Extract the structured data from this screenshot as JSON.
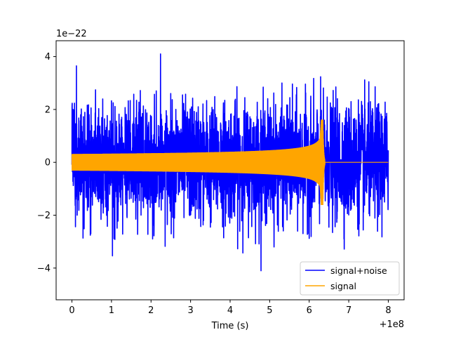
{
  "chart_data": {
    "type": "line",
    "title": "",
    "xlabel": "Time (s)",
    "ylabel": "",
    "x_offset_label": "+1e8",
    "y_scale_label": "1e−22",
    "xlim": [
      -0.4,
      8.4
    ],
    "ylim": [
      -5.2,
      4.6
    ],
    "x_ticks": [
      0,
      1,
      2,
      3,
      4,
      5,
      6,
      7,
      8
    ],
    "x_tick_labels": [
      "0",
      "1",
      "2",
      "3",
      "4",
      "5",
      "6",
      "7",
      "8"
    ],
    "y_ticks": [
      -4,
      -2,
      0,
      2,
      4
    ],
    "y_tick_labels": [
      "−4",
      "−2",
      "0",
      "2",
      "4"
    ],
    "grid": false,
    "legend_position": "lower-right",
    "series": [
      {
        "name": "signal+noise",
        "color": "#0000ff",
        "description": "noisy strain, amplitude mostly within ±3e-22, spikes to ~4.3e-22 and ~-4.7e-22",
        "x_range": [
          0,
          8
        ],
        "typical_amplitude": 2.4,
        "peak_max": 4.3,
        "peak_min": -4.7
      },
      {
        "name": "signal",
        "color": "#ffa500",
        "description": "chirp waveform growing from ±0.3e-22 to ±1.6e-22, merging near t=6.35, then zero",
        "x_range": [
          0,
          8
        ],
        "start_amplitude": 0.3,
        "merger_time": 6.35,
        "merger_amplitude": 1.6
      }
    ]
  }
}
